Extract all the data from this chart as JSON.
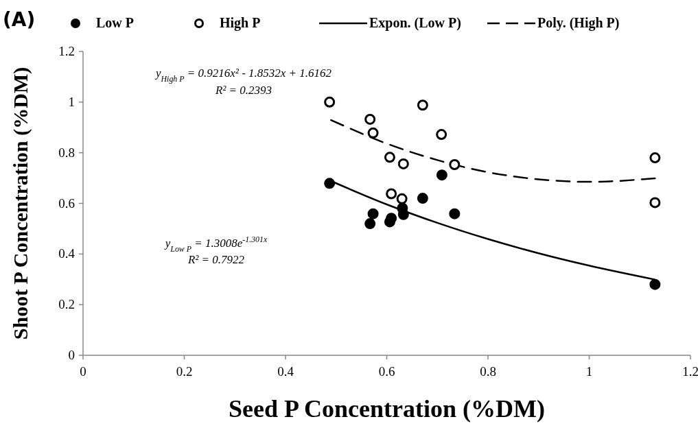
{
  "chart_data": {
    "type": "scatter",
    "title": "(A)",
    "xlabel": "Seed P Concentration (%DM)",
    "ylabel": "Shoot P Concentration (%DM)",
    "xlim": [
      0,
      1.2
    ],
    "xticks": [
      0,
      0.2,
      0.4,
      0.6,
      0.8,
      1,
      1.2
    ],
    "ylim": [
      0,
      1.2
    ],
    "yticks": [
      0,
      0.2,
      0.4,
      0.6,
      0.8,
      1,
      1.2
    ],
    "grid": false,
    "legend": "top",
    "series": [
      {
        "name": "Low P",
        "color": "#000000",
        "marker": "circle",
        "x": [
          0.487,
          0.709,
          0.671,
          0.573,
          0.567,
          0.609,
          0.606,
          0.631,
          0.633,
          0.734,
          1.13
        ],
        "values": [
          0.679,
          0.712,
          0.62,
          0.559,
          0.52,
          0.541,
          0.527,
          0.581,
          0.556,
          0.559,
          0.28
        ]
      },
      {
        "name": "High P",
        "color": "#ffffff",
        "marker": "circle",
        "x": [
          0.487,
          0.567,
          0.573,
          0.671,
          0.708,
          0.606,
          0.633,
          0.734,
          0.609,
          0.63,
          1.13,
          1.13
        ],
        "values": [
          1.0,
          0.932,
          0.878,
          0.988,
          0.872,
          0.782,
          0.756,
          0.753,
          0.638,
          0.618,
          0.78,
          0.603
        ]
      },
      {
        "name": "Expon. (Low P)",
        "type": "line",
        "color": "#000000",
        "marker": "none",
        "line_style": "solid",
        "x": [
          0.49,
          0.6,
          0.7,
          0.8,
          0.9,
          1.0,
          1.13
        ],
        "values": [
          0.688,
          0.596,
          0.523,
          0.459,
          0.403,
          0.354,
          0.299
        ]
      },
      {
        "name": "Poly. (High P)",
        "type": "line",
        "color": "#000000",
        "marker": "none",
        "line_style": "dashed",
        "x": [
          0.49,
          0.6,
          0.7,
          0.8,
          0.9,
          1.0,
          1.13
        ],
        "values": [
          0.929,
          0.836,
          0.771,
          0.723,
          0.695,
          0.685,
          0.699
        ]
      }
    ],
    "annotations": [
      "y$_{High P}$ = 0.9216x² - 1.8532x + 1.6162",
      "R² = 0.2393",
      "y$_{Low P}$ = 1.3008e$^{-1.301x}$",
      "R² = 0.7922"
    ]
  }
}
